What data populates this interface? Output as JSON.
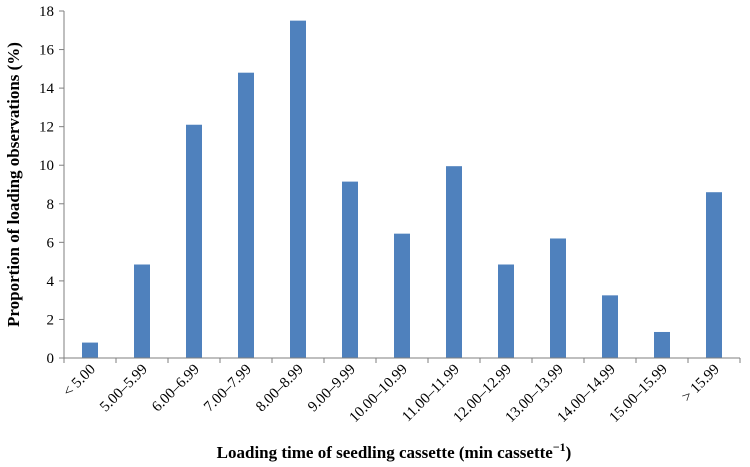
{
  "chart_data": {
    "type": "bar",
    "xlabel": "Loading time of seedling cassette (min cassette",
    "xlabel_sup": "−1",
    "xlabel_end": ")",
    "ylabel": "Proportion of loading observations (%)",
    "ylim": [
      0,
      18
    ],
    "yticks": [
      "0",
      "2",
      "4",
      "6",
      "8",
      "10",
      "12",
      "14",
      "16",
      "18"
    ],
    "grid": false,
    "bar_color": "#4f81bd",
    "categories": [
      "< 5.00",
      "5.00–5.99",
      "6.00–6.99",
      "7.00–7.99",
      "8.00–8.99",
      "9.00–9.99",
      "10.00–10.99",
      "11.00–11.99",
      "12.00–12.99",
      "13.00–13.99",
      "14.00–14.99",
      "15.00–15.99",
      "> 15.99"
    ],
    "values": [
      0.8,
      4.85,
      12.1,
      14.8,
      17.5,
      9.15,
      6.45,
      9.95,
      4.85,
      6.2,
      3.25,
      1.35,
      8.6
    ]
  }
}
